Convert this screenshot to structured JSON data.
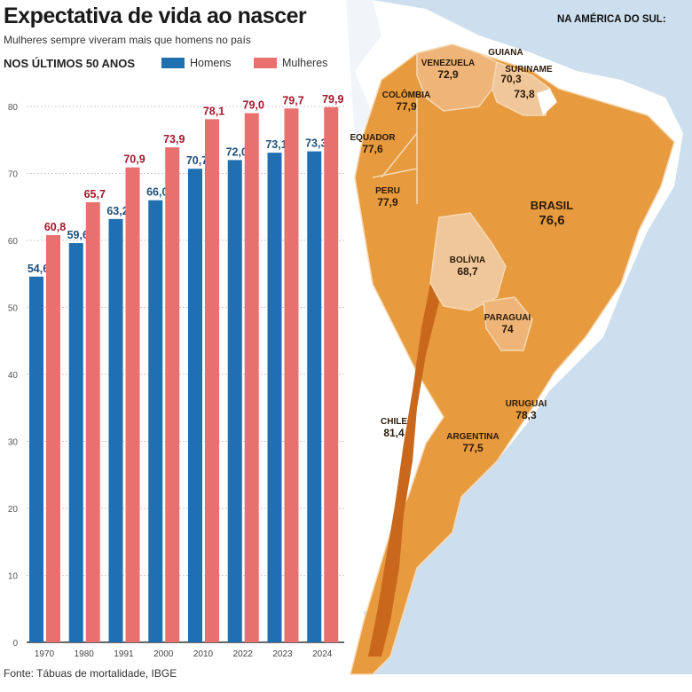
{
  "header": {
    "title": "Expectativa de vida ao nascer",
    "subtitle": "Mulheres sempre viveram mais que homens no país",
    "section": "NOS ÚLTIMOS 50 ANOS"
  },
  "source": "Fonte: Tábuas de mortalidade, IBGE",
  "colors": {
    "homens": "#1f6fb2",
    "mulheres": "#e8706e",
    "homens_label": "#1d4f7a",
    "mulheres_label": "#a3172c",
    "land": "#e79a3e",
    "land_light": "#f0c79a",
    "land_dark": "#c9681c",
    "ocean": "#cddfee"
  },
  "chart_data": {
    "type": "bar",
    "title": "Expectativa de vida ao nascer",
    "subtitle": "Mulheres sempre viveram mais que homens no país",
    "xlabel": "",
    "ylabel": "",
    "categories": [
      "1970",
      "1980",
      "1991",
      "2000",
      "2010",
      "2022",
      "2023",
      "2024"
    ],
    "series": [
      {
        "name": "Homens",
        "values": [
          54.6,
          59.6,
          63.2,
          66.0,
          70.7,
          72.0,
          73.1,
          73.3
        ]
      },
      {
        "name": "Mulheres",
        "values": [
          60.8,
          65.7,
          70.9,
          73.9,
          78.1,
          79.0,
          79.7,
          79.9
        ]
      }
    ],
    "data_labels": {
      "Homens": [
        "54,6",
        "59,6",
        "63,2",
        "66,0",
        "70,7",
        "72,0",
        "73,1",
        "73,3"
      ],
      "Mulheres": [
        "60,8",
        "65,7",
        "70,9",
        "73,9",
        "78,1",
        "79,0",
        "79,7",
        "79,9"
      ]
    },
    "ylim": [
      0,
      80
    ],
    "yticks": [
      "0",
      "10",
      "20",
      "30",
      "40",
      "50",
      "60",
      "70",
      "80"
    ],
    "grid": true,
    "legend": "top"
  },
  "map": {
    "title": "NA AMÉRICA DO SUL:",
    "countries": [
      {
        "name": "VENEZUELA",
        "value": "72,9"
      },
      {
        "name": "GUIANA",
        "value": "70,3"
      },
      {
        "name": "SURINAME",
        "value": "73,8"
      },
      {
        "name": "COLÔMBIA",
        "value": "77,9"
      },
      {
        "name": "EQUADOR",
        "value": "77,6"
      },
      {
        "name": "PERU",
        "value": "77,9"
      },
      {
        "name": "BRASIL",
        "value": "76,6"
      },
      {
        "name": "BOLÍVIA",
        "value": "68,7"
      },
      {
        "name": "PARAGUAI",
        "value": "74"
      },
      {
        "name": "URUGUAI",
        "value": "78,3"
      },
      {
        "name": "CHILE",
        "value": "81,4"
      },
      {
        "name": "ARGENTINA",
        "value": "77,5"
      }
    ]
  }
}
